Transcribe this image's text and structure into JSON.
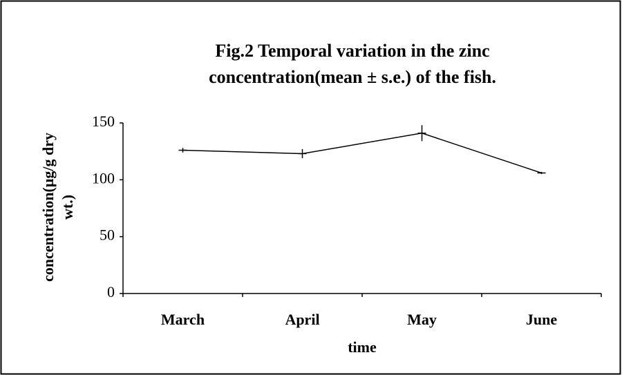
{
  "chart_data": {
    "type": "line",
    "title": [
      "Fig.2  Temporal variation in the zinc",
      "concentration(mean ± s.e.) of the fish."
    ],
    "x_label": "time",
    "y_label": [
      "concentration(μg/g dry",
      "wt.)"
    ],
    "categories": [
      "March",
      "April",
      "May",
      "June"
    ],
    "values": [
      126,
      123,
      141,
      106
    ],
    "errors": [
      2,
      4,
      7,
      1
    ],
    "color": "#000000",
    "ylim": [
      0,
      150
    ],
    "yticks": [
      0,
      50,
      100,
      150
    ],
    "grid": false
  }
}
